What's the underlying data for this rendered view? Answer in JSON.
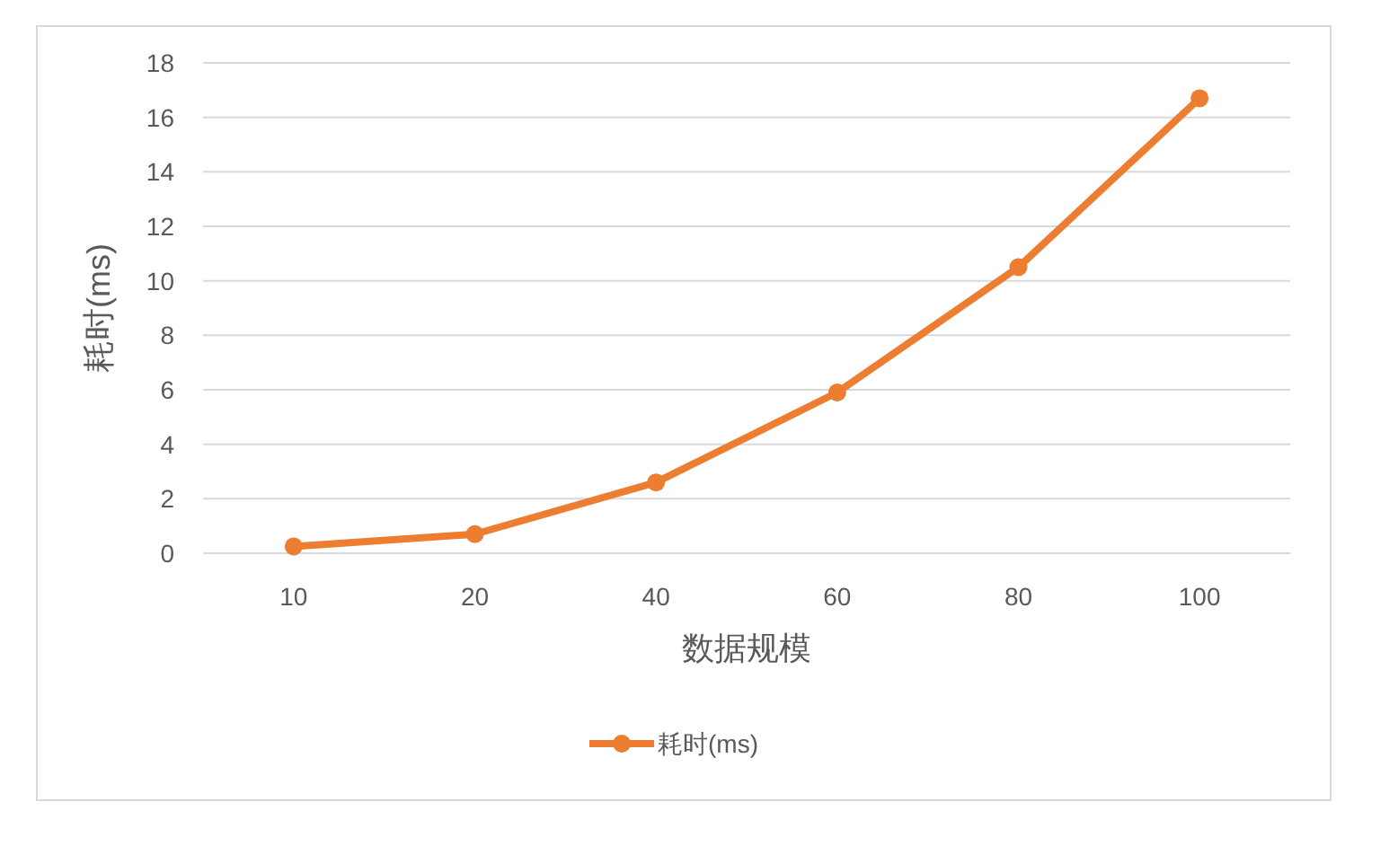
{
  "chart_data": {
    "type": "line",
    "xlabel": "数据规模",
    "ylabel": "耗时(ms)",
    "categories": [
      "10",
      "20",
      "40",
      "60",
      "80",
      "100"
    ],
    "series": [
      {
        "name": "耗时(ms)",
        "color": "#ed7d31",
        "values": [
          0.25,
          0.7,
          2.6,
          5.9,
          10.5,
          16.7
        ]
      }
    ],
    "ylim": [
      0,
      18
    ],
    "yticks": [
      0,
      2,
      4,
      6,
      8,
      10,
      12,
      14,
      16,
      18
    ],
    "grid": "y",
    "legend": "bottom",
    "marker": "circle",
    "line_style": "solid"
  }
}
